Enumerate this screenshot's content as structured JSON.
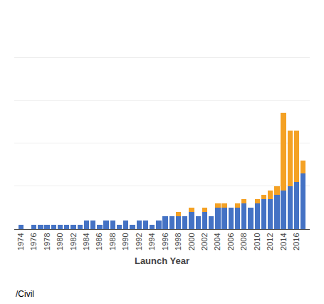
{
  "chart_data": {
    "type": "bar",
    "stacked": true,
    "xlabel": "Launch Year",
    "annotations": [
      "/Civil"
    ],
    "x": [
      1974,
      1975,
      1976,
      1977,
      1978,
      1979,
      1980,
      1981,
      1982,
      1983,
      1984,
      1985,
      1986,
      1987,
      1988,
      1989,
      1990,
      1991,
      1992,
      1993,
      1994,
      1995,
      1996,
      1997,
      1998,
      1999,
      2000,
      2001,
      2002,
      2003,
      2004,
      2005,
      2006,
      2007,
      2008,
      2009,
      2010,
      2011,
      2012,
      2013,
      2014,
      2015,
      2016,
      2017
    ],
    "series": [
      {
        "color": "#4472c4",
        "values": [
          1,
          0,
          1,
          1,
          1,
          1,
          1,
          1,
          1,
          1,
          2,
          2,
          1,
          2,
          2,
          1,
          2,
          1,
          2,
          2,
          1,
          2,
          3,
          3,
          3,
          3,
          4,
          3,
          4,
          3,
          5,
          5,
          5,
          5,
          6,
          5,
          6,
          7,
          7,
          8,
          9,
          10,
          11,
          13
        ]
      },
      {
        "color": "#f4a124",
        "values": [
          0,
          0,
          0,
          0,
          0,
          0,
          0,
          0,
          0,
          0,
          0,
          0,
          0,
          0,
          0,
          0,
          0,
          0,
          0,
          0,
          0,
          0,
          0,
          0,
          1,
          0,
          1,
          0,
          1,
          0,
          1,
          1,
          0,
          1,
          1,
          0,
          1,
          1,
          2,
          2,
          18,
          13,
          12,
          3
        ]
      }
    ],
    "xlim": [
      1973,
      2018
    ],
    "xticks": [
      1974,
      1976,
      1978,
      1980,
      1982,
      1984,
      1986,
      1988,
      1990,
      1992,
      1994,
      1996,
      1998,
      2000,
      2002,
      2004,
      2006,
      2008,
      2010,
      2012,
      2014,
      2016
    ],
    "ylim": [
      0,
      50
    ],
    "yticks": [
      0,
      10,
      20,
      30,
      40,
      50
    ],
    "grid": true,
    "tick_labels": "x"
  }
}
